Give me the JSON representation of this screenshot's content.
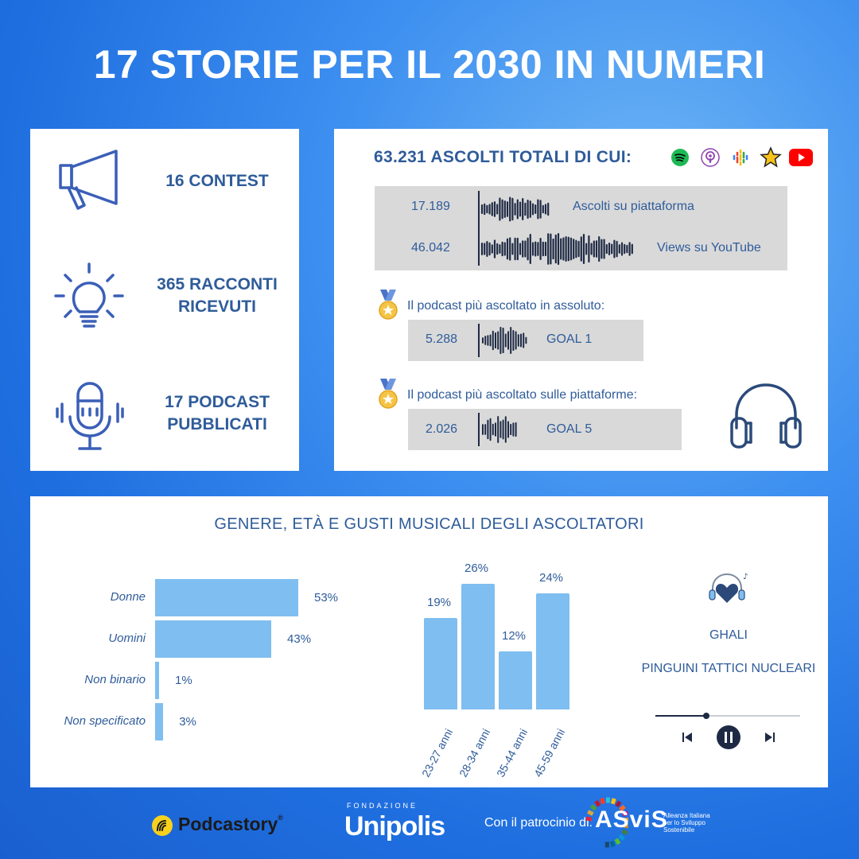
{
  "title": "17 STORIE PER IL 2030 IN NUMERI",
  "stats": [
    {
      "label": "16 CONTEST",
      "icon": "megaphone-icon"
    },
    {
      "label": "365 RACCONTI RICEVUTI",
      "icon": "lightbulb-icon"
    },
    {
      "label": "17 PODCAST PUBBLICATI",
      "icon": "microphone-icon"
    }
  ],
  "listens": {
    "heading": "63.231 ASCOLTI TOTALI DI CUI:",
    "platforms": [
      "spotify-icon",
      "apple-podcasts-icon",
      "google-podcasts-icon",
      "spreaker-icon",
      "youtube-icon"
    ],
    "rows": [
      {
        "value": "17.189",
        "label": "Ascolti su piattaforma"
      },
      {
        "value": "46.042",
        "label": "Views su YouTube"
      }
    ],
    "top_overall": {
      "caption": "Il podcast più ascoltato in assoluto:",
      "value": "5.288",
      "label": "GOAL 1"
    },
    "top_platforms": {
      "caption": "Il podcast più ascoltato sulle piattaforme:",
      "value": "2.026",
      "label": "GOAL 5"
    }
  },
  "audience": {
    "title": "GENERE, ETÀ E GUSTI MUSICALI DEGLI ASCOLTATORI",
    "artists": [
      "GHALI",
      "PINGUINI TATTICI NUCLEARI"
    ]
  },
  "chart_data": [
    {
      "type": "bar",
      "orientation": "horizontal",
      "categories": [
        "Donne",
        "Uomini",
        "Non binario",
        "Non specificato"
      ],
      "values": [
        53,
        43,
        1,
        3
      ],
      "value_labels": [
        "53%",
        "43%",
        "1%",
        "3%"
      ],
      "xlim": [
        0,
        53
      ]
    },
    {
      "type": "bar",
      "categories": [
        "23-27 anni",
        "28-34 anni",
        "35-44 anni",
        "45-59 anni"
      ],
      "values": [
        19,
        26,
        12,
        24
      ],
      "value_labels": [
        "19%",
        "26%",
        "12%",
        "24%"
      ],
      "ylim": [
        0,
        26
      ]
    }
  ],
  "footer": {
    "podcastory": "Podcastory",
    "registered": "®",
    "fondazione": "FONDAZIONE",
    "unipolis": "Unipolis",
    "patrocinio": "Con il patrocinio di:",
    "asvis": "ASviS",
    "asvis_sub1": "Alleanza Italiana",
    "asvis_sub2": "per lo Sviluppo",
    "asvis_sub3": "Sostenibile"
  },
  "colors": {
    "accent": "#2f5c9a",
    "bar": "#7fbef0",
    "gray": "#d9d9d9",
    "background": "#1f6fe0"
  }
}
